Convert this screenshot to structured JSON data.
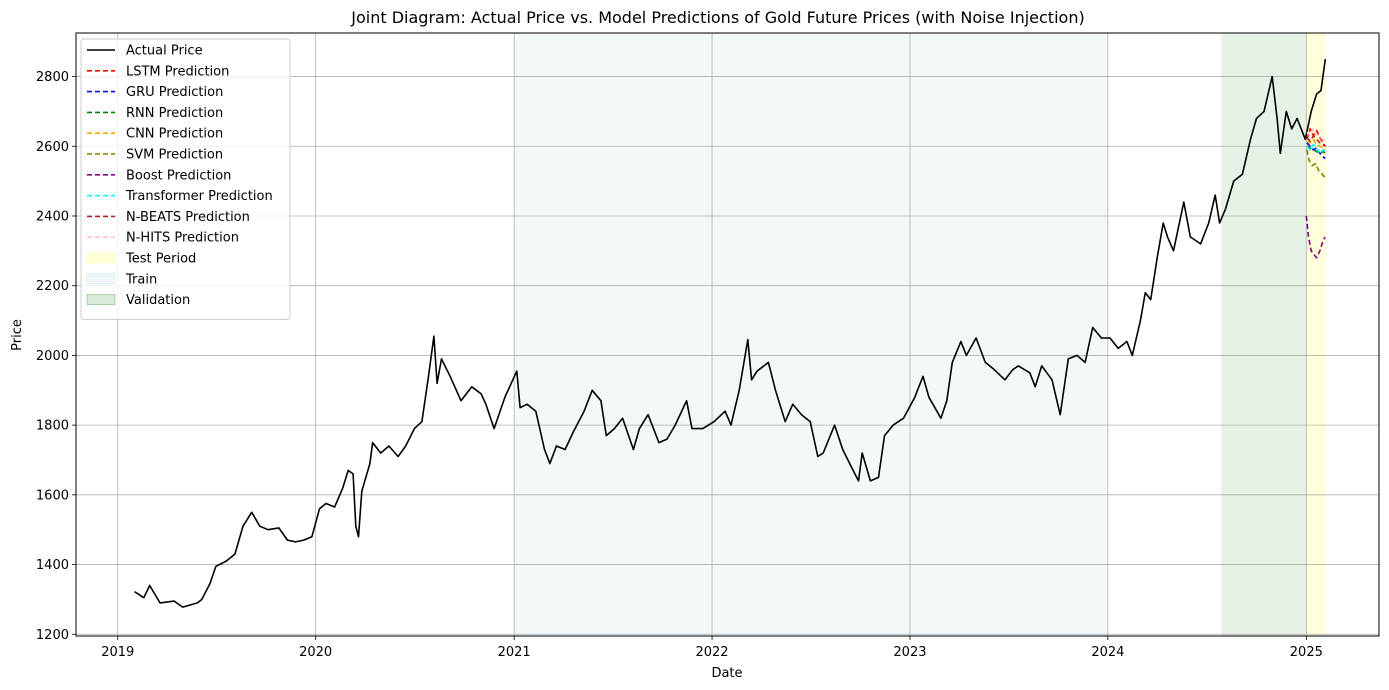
{
  "chart_data": {
    "type": "line",
    "title": "Joint Diagram: Actual Price vs. Model Predictions of Gold Future Prices (with Noise Injection)",
    "xlabel": "Date",
    "ylabel": "Price",
    "xlim": [
      "2018-10-16",
      "2025-05-15"
    ],
    "ylim": [
      1195,
      2925
    ],
    "x_ticks": [
      "2019",
      "2020",
      "2021",
      "2022",
      "2023",
      "2024",
      "2025"
    ],
    "y_ticks": [
      1200,
      1400,
      1600,
      1800,
      2000,
      2200,
      2400,
      2600,
      2800
    ],
    "grid": true,
    "legend_position": "upper-left",
    "regions": [
      {
        "name": "Train",
        "start": "2021-01-01",
        "end": "2024-01-01",
        "color": "#add8e6",
        "opacity": 0.15
      },
      {
        "name": "Validation",
        "start": "2024-07-28",
        "end": "2025-01-01",
        "color": "#008000",
        "opacity": 0.1
      },
      {
        "name": "Test Period",
        "start": "2025-01-01",
        "end": "2025-02-06",
        "color": "#ffff99",
        "opacity": 0.35
      }
    ],
    "series": [
      {
        "name": "Actual Price",
        "color": "#000000",
        "dash": "solid",
        "points": [
          [
            "2019-02-01",
            1322
          ],
          [
            "2019-02-18",
            1305
          ],
          [
            "2019-03-01",
            1340
          ],
          [
            "2019-03-20",
            1290
          ],
          [
            "2019-04-15",
            1295
          ],
          [
            "2019-05-01",
            1278
          ],
          [
            "2019-05-28",
            1290
          ],
          [
            "2019-06-05",
            1300
          ],
          [
            "2019-06-20",
            1345
          ],
          [
            "2019-07-01",
            1395
          ],
          [
            "2019-07-20",
            1410
          ],
          [
            "2019-08-05",
            1430
          ],
          [
            "2019-08-20",
            1510
          ],
          [
            "2019-09-05",
            1550
          ],
          [
            "2019-09-20",
            1510
          ],
          [
            "2019-10-05",
            1500
          ],
          [
            "2019-10-25",
            1505
          ],
          [
            "2019-11-10",
            1470
          ],
          [
            "2019-11-25",
            1465
          ],
          [
            "2019-12-10",
            1470
          ],
          [
            "2019-12-25",
            1480
          ],
          [
            "2020-01-08",
            1560
          ],
          [
            "2020-01-20",
            1575
          ],
          [
            "2020-02-05",
            1565
          ],
          [
            "2020-02-20",
            1620
          ],
          [
            "2020-03-01",
            1670
          ],
          [
            "2020-03-10",
            1660
          ],
          [
            "2020-03-15",
            1510
          ],
          [
            "2020-03-20",
            1480
          ],
          [
            "2020-03-26",
            1610
          ],
          [
            "2020-04-10",
            1690
          ],
          [
            "2020-04-15",
            1750
          ],
          [
            "2020-04-30",
            1720
          ],
          [
            "2020-05-15",
            1740
          ],
          [
            "2020-06-01",
            1710
          ],
          [
            "2020-06-15",
            1740
          ],
          [
            "2020-07-01",
            1790
          ],
          [
            "2020-07-15",
            1810
          ],
          [
            "2020-07-27",
            1940
          ],
          [
            "2020-08-06",
            2055
          ],
          [
            "2020-08-12",
            1920
          ],
          [
            "2020-08-20",
            1990
          ],
          [
            "2020-09-05",
            1940
          ],
          [
            "2020-09-25",
            1870
          ],
          [
            "2020-10-15",
            1910
          ],
          [
            "2020-11-01",
            1890
          ],
          [
            "2020-11-10",
            1860
          ],
          [
            "2020-11-25",
            1790
          ],
          [
            "2020-12-15",
            1880
          ],
          [
            "2021-01-06",
            1955
          ],
          [
            "2021-01-12",
            1850
          ],
          [
            "2021-01-25",
            1860
          ],
          [
            "2021-02-10",
            1840
          ],
          [
            "2021-02-26",
            1730
          ],
          [
            "2021-03-08",
            1690
          ],
          [
            "2021-03-20",
            1740
          ],
          [
            "2021-04-05",
            1730
          ],
          [
            "2021-04-20",
            1780
          ],
          [
            "2021-05-10",
            1840
          ],
          [
            "2021-05-25",
            1900
          ],
          [
            "2021-06-10",
            1870
          ],
          [
            "2021-06-20",
            1770
          ],
          [
            "2021-07-05",
            1790
          ],
          [
            "2021-07-20",
            1820
          ],
          [
            "2021-08-09",
            1730
          ],
          [
            "2021-08-20",
            1790
          ],
          [
            "2021-09-05",
            1830
          ],
          [
            "2021-09-25",
            1750
          ],
          [
            "2021-10-10",
            1760
          ],
          [
            "2021-10-25",
            1800
          ],
          [
            "2021-11-15",
            1870
          ],
          [
            "2021-11-25",
            1790
          ],
          [
            "2021-12-15",
            1790
          ],
          [
            "2022-01-05",
            1810
          ],
          [
            "2022-01-25",
            1840
          ],
          [
            "2022-02-05",
            1800
          ],
          [
            "2022-02-20",
            1900
          ],
          [
            "2022-03-08",
            2045
          ],
          [
            "2022-03-15",
            1930
          ],
          [
            "2022-03-25",
            1955
          ],
          [
            "2022-04-15",
            1980
          ],
          [
            "2022-04-28",
            1900
          ],
          [
            "2022-05-16",
            1810
          ],
          [
            "2022-05-30",
            1860
          ],
          [
            "2022-06-15",
            1830
          ],
          [
            "2022-07-01",
            1810
          ],
          [
            "2022-07-15",
            1710
          ],
          [
            "2022-07-25",
            1720
          ],
          [
            "2022-08-15",
            1800
          ],
          [
            "2022-08-30",
            1730
          ],
          [
            "2022-09-15",
            1680
          ],
          [
            "2022-09-28",
            1640
          ],
          [
            "2022-10-05",
            1720
          ],
          [
            "2022-10-20",
            1640
          ],
          [
            "2022-11-04",
            1650
          ],
          [
            "2022-11-15",
            1770
          ],
          [
            "2022-12-01",
            1800
          ],
          [
            "2022-12-20",
            1820
          ],
          [
            "2023-01-10",
            1880
          ],
          [
            "2023-01-25",
            1940
          ],
          [
            "2023-02-05",
            1880
          ],
          [
            "2023-02-27",
            1820
          ],
          [
            "2023-03-10",
            1870
          ],
          [
            "2023-03-20",
            1980
          ],
          [
            "2023-04-05",
            2040
          ],
          [
            "2023-04-15",
            2000
          ],
          [
            "2023-05-03",
            2050
          ],
          [
            "2023-05-20",
            1980
          ],
          [
            "2023-06-05",
            1960
          ],
          [
            "2023-06-25",
            1930
          ],
          [
            "2023-07-10",
            1960
          ],
          [
            "2023-07-20",
            1970
          ],
          [
            "2023-08-10",
            1950
          ],
          [
            "2023-08-20",
            1910
          ],
          [
            "2023-09-01",
            1970
          ],
          [
            "2023-09-20",
            1930
          ],
          [
            "2023-10-05",
            1830
          ],
          [
            "2023-10-20",
            1990
          ],
          [
            "2023-11-05",
            2000
          ],
          [
            "2023-11-20",
            1980
          ],
          [
            "2023-12-04",
            2080
          ],
          [
            "2023-12-20",
            2050
          ],
          [
            "2024-01-05",
            2050
          ],
          [
            "2024-01-20",
            2020
          ],
          [
            "2024-02-05",
            2040
          ],
          [
            "2024-02-15",
            2000
          ],
          [
            "2024-03-01",
            2100
          ],
          [
            "2024-03-10",
            2180
          ],
          [
            "2024-03-20",
            2160
          ],
          [
            "2024-04-01",
            2280
          ],
          [
            "2024-04-12",
            2380
          ],
          [
            "2024-04-20",
            2340
          ],
          [
            "2024-05-01",
            2300
          ],
          [
            "2024-05-20",
            2440
          ],
          [
            "2024-06-01",
            2340
          ],
          [
            "2024-06-20",
            2320
          ],
          [
            "2024-07-05",
            2380
          ],
          [
            "2024-07-17",
            2460
          ],
          [
            "2024-07-25",
            2380
          ],
          [
            "2024-08-05",
            2420
          ],
          [
            "2024-08-20",
            2500
          ],
          [
            "2024-09-05",
            2520
          ],
          [
            "2024-09-20",
            2620
          ],
          [
            "2024-10-01",
            2680
          ],
          [
            "2024-10-15",
            2700
          ],
          [
            "2024-10-30",
            2800
          ],
          [
            "2024-11-08",
            2680
          ],
          [
            "2024-11-14",
            2580
          ],
          [
            "2024-11-25",
            2700
          ],
          [
            "2024-12-05",
            2650
          ],
          [
            "2024-12-15",
            2680
          ],
          [
            "2024-12-30",
            2620
          ],
          [
            "2025-01-10",
            2700
          ],
          [
            "2025-01-20",
            2750
          ],
          [
            "2025-01-28",
            2760
          ],
          [
            "2025-02-05",
            2850
          ]
        ]
      },
      {
        "name": "LSTM Prediction",
        "color": "#ff0000",
        "dash": "dashed",
        "points": [
          [
            "2025-01-02",
            2620
          ],
          [
            "2025-01-08",
            2650
          ],
          [
            "2025-01-14",
            2630
          ],
          [
            "2025-01-20",
            2645
          ],
          [
            "2025-01-26",
            2625
          ],
          [
            "2025-02-01",
            2610
          ],
          [
            "2025-02-05",
            2600
          ]
        ]
      },
      {
        "name": "GRU Prediction",
        "color": "#0000ff",
        "dash": "dashed",
        "points": [
          [
            "2025-01-02",
            2610
          ],
          [
            "2025-01-08",
            2600
          ],
          [
            "2025-01-14",
            2590
          ],
          [
            "2025-01-20",
            2595
          ],
          [
            "2025-01-26",
            2580
          ],
          [
            "2025-02-01",
            2570
          ],
          [
            "2025-02-05",
            2565
          ]
        ]
      },
      {
        "name": "RNN Prediction",
        "color": "#008000",
        "dash": "dashed",
        "points": [
          [
            "2025-01-02",
            2600
          ],
          [
            "2025-01-08",
            2595
          ],
          [
            "2025-01-14",
            2590
          ],
          [
            "2025-01-20",
            2585
          ],
          [
            "2025-01-26",
            2580
          ],
          [
            "2025-02-01",
            2585
          ],
          [
            "2025-02-05",
            2580
          ]
        ]
      },
      {
        "name": "CNN Prediction",
        "color": "#ffa500",
        "dash": "dashed",
        "points": [
          [
            "2025-01-02",
            2615
          ],
          [
            "2025-01-08",
            2610
          ],
          [
            "2025-01-14",
            2620
          ],
          [
            "2025-01-20",
            2605
          ],
          [
            "2025-01-26",
            2600
          ],
          [
            "2025-02-01",
            2595
          ],
          [
            "2025-02-05",
            2590
          ]
        ]
      },
      {
        "name": "SVM Prediction",
        "color": "#808000",
        "dash": "dashed",
        "points": [
          [
            "2025-01-02",
            2590
          ],
          [
            "2025-01-06",
            2560
          ],
          [
            "2025-01-12",
            2545
          ],
          [
            "2025-01-18",
            2550
          ],
          [
            "2025-01-24",
            2530
          ],
          [
            "2025-01-30",
            2520
          ],
          [
            "2025-02-05",
            2510
          ]
        ]
      },
      {
        "name": "Boost Prediction",
        "color": "#800080",
        "dash": "dashed",
        "points": [
          [
            "2025-01-01",
            2400
          ],
          [
            "2025-01-05",
            2340
          ],
          [
            "2025-01-10",
            2300
          ],
          [
            "2025-01-15",
            2290
          ],
          [
            "2025-01-20",
            2280
          ],
          [
            "2025-01-26",
            2300
          ],
          [
            "2025-02-01",
            2330
          ],
          [
            "2025-02-05",
            2340
          ]
        ]
      },
      {
        "name": "Transformer Prediction",
        "color": "#00ffff",
        "dash": "dashed",
        "points": [
          [
            "2025-01-02",
            2600
          ],
          [
            "2025-01-08",
            2590
          ],
          [
            "2025-01-14",
            2605
          ],
          [
            "2025-01-20",
            2595
          ],
          [
            "2025-01-26",
            2580
          ],
          [
            "2025-02-01",
            2590
          ],
          [
            "2025-02-05",
            2585
          ]
        ]
      },
      {
        "name": "N-BEATS Prediction",
        "color": "#b22222",
        "dash": "dashed",
        "points": [
          [
            "2025-01-02",
            2625
          ],
          [
            "2025-01-08",
            2615
          ],
          [
            "2025-01-14",
            2630
          ],
          [
            "2025-01-20",
            2620
          ],
          [
            "2025-01-26",
            2610
          ],
          [
            "2025-02-01",
            2605
          ],
          [
            "2025-02-05",
            2600
          ]
        ]
      },
      {
        "name": "N-HITS Prediction",
        "color": "#ffc0cb",
        "dash": "dashed",
        "points": [
          [
            "2025-01-02",
            2640
          ],
          [
            "2025-01-08",
            2630
          ],
          [
            "2025-01-14",
            2650
          ],
          [
            "2025-01-20",
            2635
          ],
          [
            "2025-01-26",
            2625
          ],
          [
            "2025-02-01",
            2620
          ],
          [
            "2025-02-05",
            2615
          ]
        ]
      }
    ]
  }
}
